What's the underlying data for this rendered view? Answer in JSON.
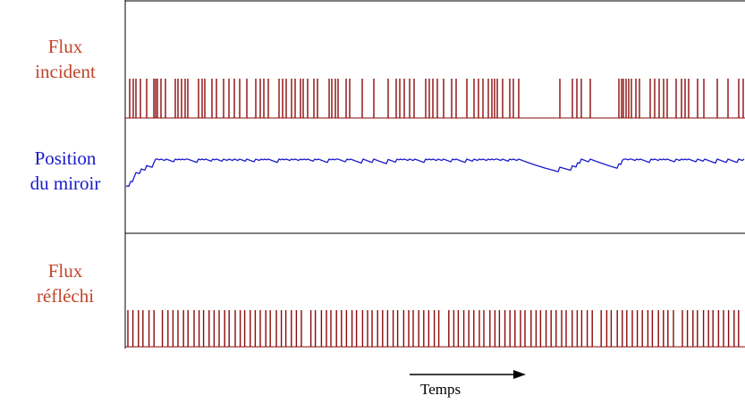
{
  "labels": {
    "incident_line1": "Flux",
    "incident_line2": "incident",
    "position_line1": "Position",
    "position_line2": "du miroir",
    "reflechi_line1": "Flux",
    "reflechi_line2": "réfléchi",
    "time_axis": "Temps"
  },
  "colors": {
    "flux": "#8b0a0a",
    "flux_label": "#c0442a",
    "position": "#1a1acc",
    "frame": "#000000"
  },
  "arrow": {
    "direction": "right"
  }
}
